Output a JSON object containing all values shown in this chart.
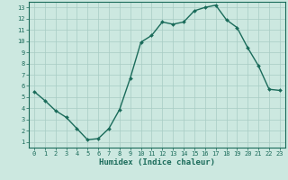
{
  "x": [
    0,
    1,
    2,
    3,
    4,
    5,
    6,
    7,
    8,
    9,
    10,
    11,
    12,
    13,
    14,
    15,
    16,
    17,
    18,
    19,
    20,
    21,
    22,
    23
  ],
  "y": [
    5.5,
    4.7,
    3.8,
    3.2,
    2.2,
    1.2,
    1.3,
    2.2,
    3.9,
    6.7,
    9.9,
    10.5,
    11.7,
    11.5,
    11.7,
    12.7,
    13.0,
    13.2,
    11.9,
    11.2,
    9.4,
    7.8,
    5.7,
    5.6
  ],
  "line_color": "#1a6b5a",
  "bg_color": "#cce8e0",
  "grid_color": "#a8ccc4",
  "axis_color": "#1a6b5a",
  "xlabel": "Humidex (Indice chaleur)",
  "ylim": [
    0.5,
    13.5
  ],
  "xlim": [
    -0.5,
    23.5
  ],
  "yticks": [
    1,
    2,
    3,
    4,
    5,
    6,
    7,
    8,
    9,
    10,
    11,
    12,
    13
  ],
  "xticks": [
    0,
    1,
    2,
    3,
    4,
    5,
    6,
    7,
    8,
    9,
    10,
    11,
    12,
    13,
    14,
    15,
    16,
    17,
    18,
    19,
    20,
    21,
    22,
    23
  ]
}
